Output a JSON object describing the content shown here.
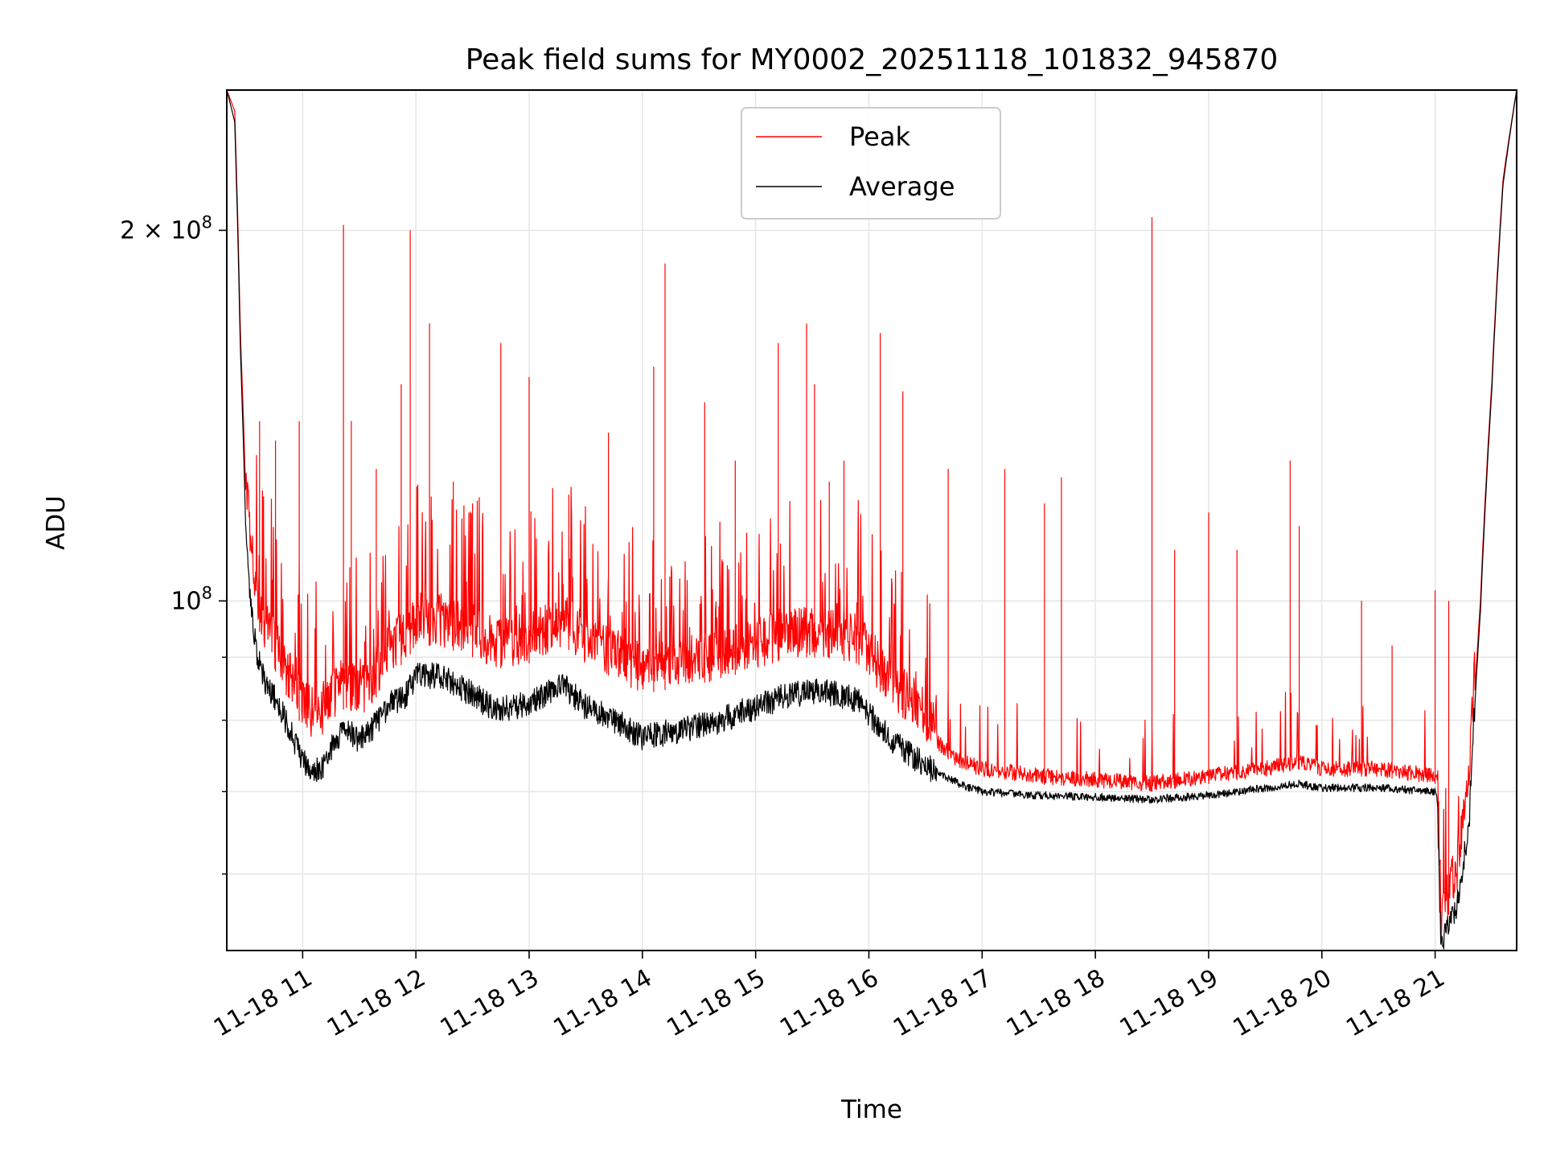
{
  "chart_data": {
    "type": "line",
    "title": "Peak field sums for MY0002_20251118_101832_945870",
    "xlabel": "Time",
    "ylabel": "ADU",
    "yscale": "log",
    "grid": true,
    "legend_placement": "top-center",
    "x_unit": "hours since 2025-11-18 00:00",
    "xlim": [
      10.33,
      21.72
    ],
    "ylim": [
      52000000,
      260000000
    ],
    "x_ticks": [
      {
        "value": 11,
        "label": "11-18 11"
      },
      {
        "value": 12,
        "label": "11-18 12"
      },
      {
        "value": 13,
        "label": "11-18 13"
      },
      {
        "value": 14,
        "label": "11-18 14"
      },
      {
        "value": 15,
        "label": "11-18 15"
      },
      {
        "value": 16,
        "label": "11-18 16"
      },
      {
        "value": 17,
        "label": "11-18 17"
      },
      {
        "value": 18,
        "label": "11-18 18"
      },
      {
        "value": 19,
        "label": "11-18 19"
      },
      {
        "value": 20,
        "label": "11-18 20"
      },
      {
        "value": 21,
        "label": "11-18 21"
      }
    ],
    "y_major_ticks": [
      {
        "value": 100000000,
        "base": "10",
        "exp": "8"
      },
      {
        "value": 200000000,
        "base": "2 × 10",
        "exp": "8"
      }
    ],
    "y_minor_ticks": [
      60000000,
      70000000,
      80000000,
      90000000
    ],
    "series": [
      {
        "name": "Peak",
        "color": "#ff0000",
        "baseline": [
          [
            10.33,
            260000000
          ],
          [
            10.4,
            250000000
          ],
          [
            10.45,
            165000000
          ],
          [
            10.5,
            120000000
          ],
          [
            10.55,
            104000000
          ],
          [
            10.6,
            96000000
          ],
          [
            10.65,
            92000000
          ],
          [
            10.7,
            90000000
          ],
          [
            10.8,
            86000000
          ],
          [
            10.9,
            82000000
          ],
          [
            11.0,
            79000000
          ],
          [
            11.1,
            77000000
          ],
          [
            11.2,
            78000000
          ],
          [
            11.3,
            81000000
          ],
          [
            11.4,
            82000000
          ],
          [
            11.5,
            80000000
          ],
          [
            11.6,
            82000000
          ],
          [
            11.8,
            88000000
          ],
          [
            11.9,
            89000000
          ],
          [
            12.0,
            92000000
          ],
          [
            12.2,
            92000000
          ],
          [
            12.5,
            90000000
          ],
          [
            12.7,
            88000000
          ],
          [
            13.0,
            89000000
          ],
          [
            13.3,
            92000000
          ],
          [
            13.5,
            89000000
          ],
          [
            13.8,
            86000000
          ],
          [
            14.0,
            84000000
          ],
          [
            14.3,
            85000000
          ],
          [
            14.6,
            86000000
          ],
          [
            15.0,
            88000000
          ],
          [
            15.3,
            90000000
          ],
          [
            15.6,
            90000000
          ],
          [
            15.9,
            89000000
          ],
          [
            16.2,
            82000000
          ],
          [
            16.5,
            77000000
          ],
          [
            16.8,
            73000000
          ],
          [
            17.0,
            72000000
          ],
          [
            17.5,
            71000000
          ],
          [
            18.0,
            70500000
          ],
          [
            18.5,
            70000000
          ],
          [
            19.0,
            71000000
          ],
          [
            19.5,
            72000000
          ],
          [
            19.8,
            73000000
          ],
          [
            20.0,
            72000000
          ],
          [
            20.5,
            72000000
          ],
          [
            21.0,
            71000000
          ],
          [
            21.02,
            70000000
          ],
          [
            21.05,
            52000000
          ],
          [
            21.1,
            55000000
          ],
          [
            21.2,
            58000000
          ],
          [
            21.3,
            68000000
          ],
          [
            21.4,
            100000000
          ],
          [
            21.5,
            150000000
          ],
          [
            21.6,
            220000000
          ],
          [
            21.72,
            260000000
          ]
        ],
        "spikes": [
          [
            10.62,
            140000000
          ],
          [
            10.76,
            135000000
          ],
          [
            10.97,
            140000000
          ],
          [
            11.36,
            202000000
          ],
          [
            11.43,
            140000000
          ],
          [
            11.65,
            128000000
          ],
          [
            11.87,
            150000000
          ],
          [
            11.95,
            200000000
          ],
          [
            12.12,
            168000000
          ],
          [
            12.33,
            125000000
          ],
          [
            12.5,
            120000000
          ],
          [
            12.75,
            162000000
          ],
          [
            13.0,
            152000000
          ],
          [
            13.35,
            122000000
          ],
          [
            13.7,
            137000000
          ],
          [
            14.1,
            155000000
          ],
          [
            14.2,
            188000000
          ],
          [
            14.55,
            145000000
          ],
          [
            14.82,
            130000000
          ],
          [
            15.2,
            162000000
          ],
          [
            15.45,
            168000000
          ],
          [
            15.52,
            150000000
          ],
          [
            15.65,
            125000000
          ],
          [
            15.78,
            130000000
          ],
          [
            16.1,
            165000000
          ],
          [
            16.3,
            148000000
          ],
          [
            16.7,
            128000000
          ],
          [
            17.2,
            128000000
          ],
          [
            17.55,
            120000000
          ],
          [
            17.7,
            126000000
          ],
          [
            18.5,
            205000000
          ],
          [
            18.7,
            110000000
          ],
          [
            19.0,
            118000000
          ],
          [
            19.25,
            110000000
          ],
          [
            19.72,
            130000000
          ],
          [
            19.8,
            115000000
          ],
          [
            20.35,
            100000000
          ],
          [
            20.62,
            92000000
          ],
          [
            21.0,
            102000000
          ],
          [
            21.12,
            100000000
          ]
        ]
      },
      {
        "name": "Average",
        "color": "#000000",
        "baseline": [
          [
            10.33,
            260000000
          ],
          [
            10.4,
            245000000
          ],
          [
            10.45,
            160000000
          ],
          [
            10.5,
            112000000
          ],
          [
            10.55,
            97000000
          ],
          [
            10.6,
            90000000
          ],
          [
            10.65,
            87000000
          ],
          [
            10.7,
            85000000
          ],
          [
            10.8,
            82000000
          ],
          [
            10.9,
            78000000
          ],
          [
            11.0,
            74000000
          ],
          [
            11.1,
            72500000
          ],
          [
            11.2,
            74000000
          ],
          [
            11.3,
            77500000
          ],
          [
            11.4,
            78500000
          ],
          [
            11.5,
            77000000
          ],
          [
            11.6,
            78500000
          ],
          [
            11.8,
            83000000
          ],
          [
            11.9,
            83500000
          ],
          [
            12.0,
            87000000
          ],
          [
            12.2,
            87000000
          ],
          [
            12.5,
            84000000
          ],
          [
            12.7,
            81500000
          ],
          [
            13.0,
            82500000
          ],
          [
            13.3,
            85500000
          ],
          [
            13.5,
            82000000
          ],
          [
            13.8,
            79500000
          ],
          [
            14.0,
            77500000
          ],
          [
            14.3,
            78500000
          ],
          [
            14.6,
            79500000
          ],
          [
            15.0,
            82000000
          ],
          [
            15.3,
            84000000
          ],
          [
            15.6,
            84500000
          ],
          [
            15.9,
            83000000
          ],
          [
            16.2,
            77000000
          ],
          [
            16.5,
            73500000
          ],
          [
            16.8,
            71000000
          ],
          [
            17.0,
            70000000
          ],
          [
            17.5,
            69500000
          ],
          [
            18.0,
            69300000
          ],
          [
            18.5,
            69000000
          ],
          [
            19.0,
            69500000
          ],
          [
            19.5,
            70500000
          ],
          [
            19.8,
            71000000
          ],
          [
            20.0,
            70500000
          ],
          [
            20.5,
            70500000
          ],
          [
            21.0,
            70000000
          ],
          [
            21.02,
            69000000
          ],
          [
            21.05,
            52000000
          ],
          [
            21.1,
            54000000
          ],
          [
            21.2,
            57000000
          ],
          [
            21.3,
            66000000
          ],
          [
            21.4,
            98000000
          ],
          [
            21.5,
            148000000
          ],
          [
            21.6,
            218000000
          ],
          [
            21.72,
            260000000
          ]
        ]
      }
    ]
  }
}
